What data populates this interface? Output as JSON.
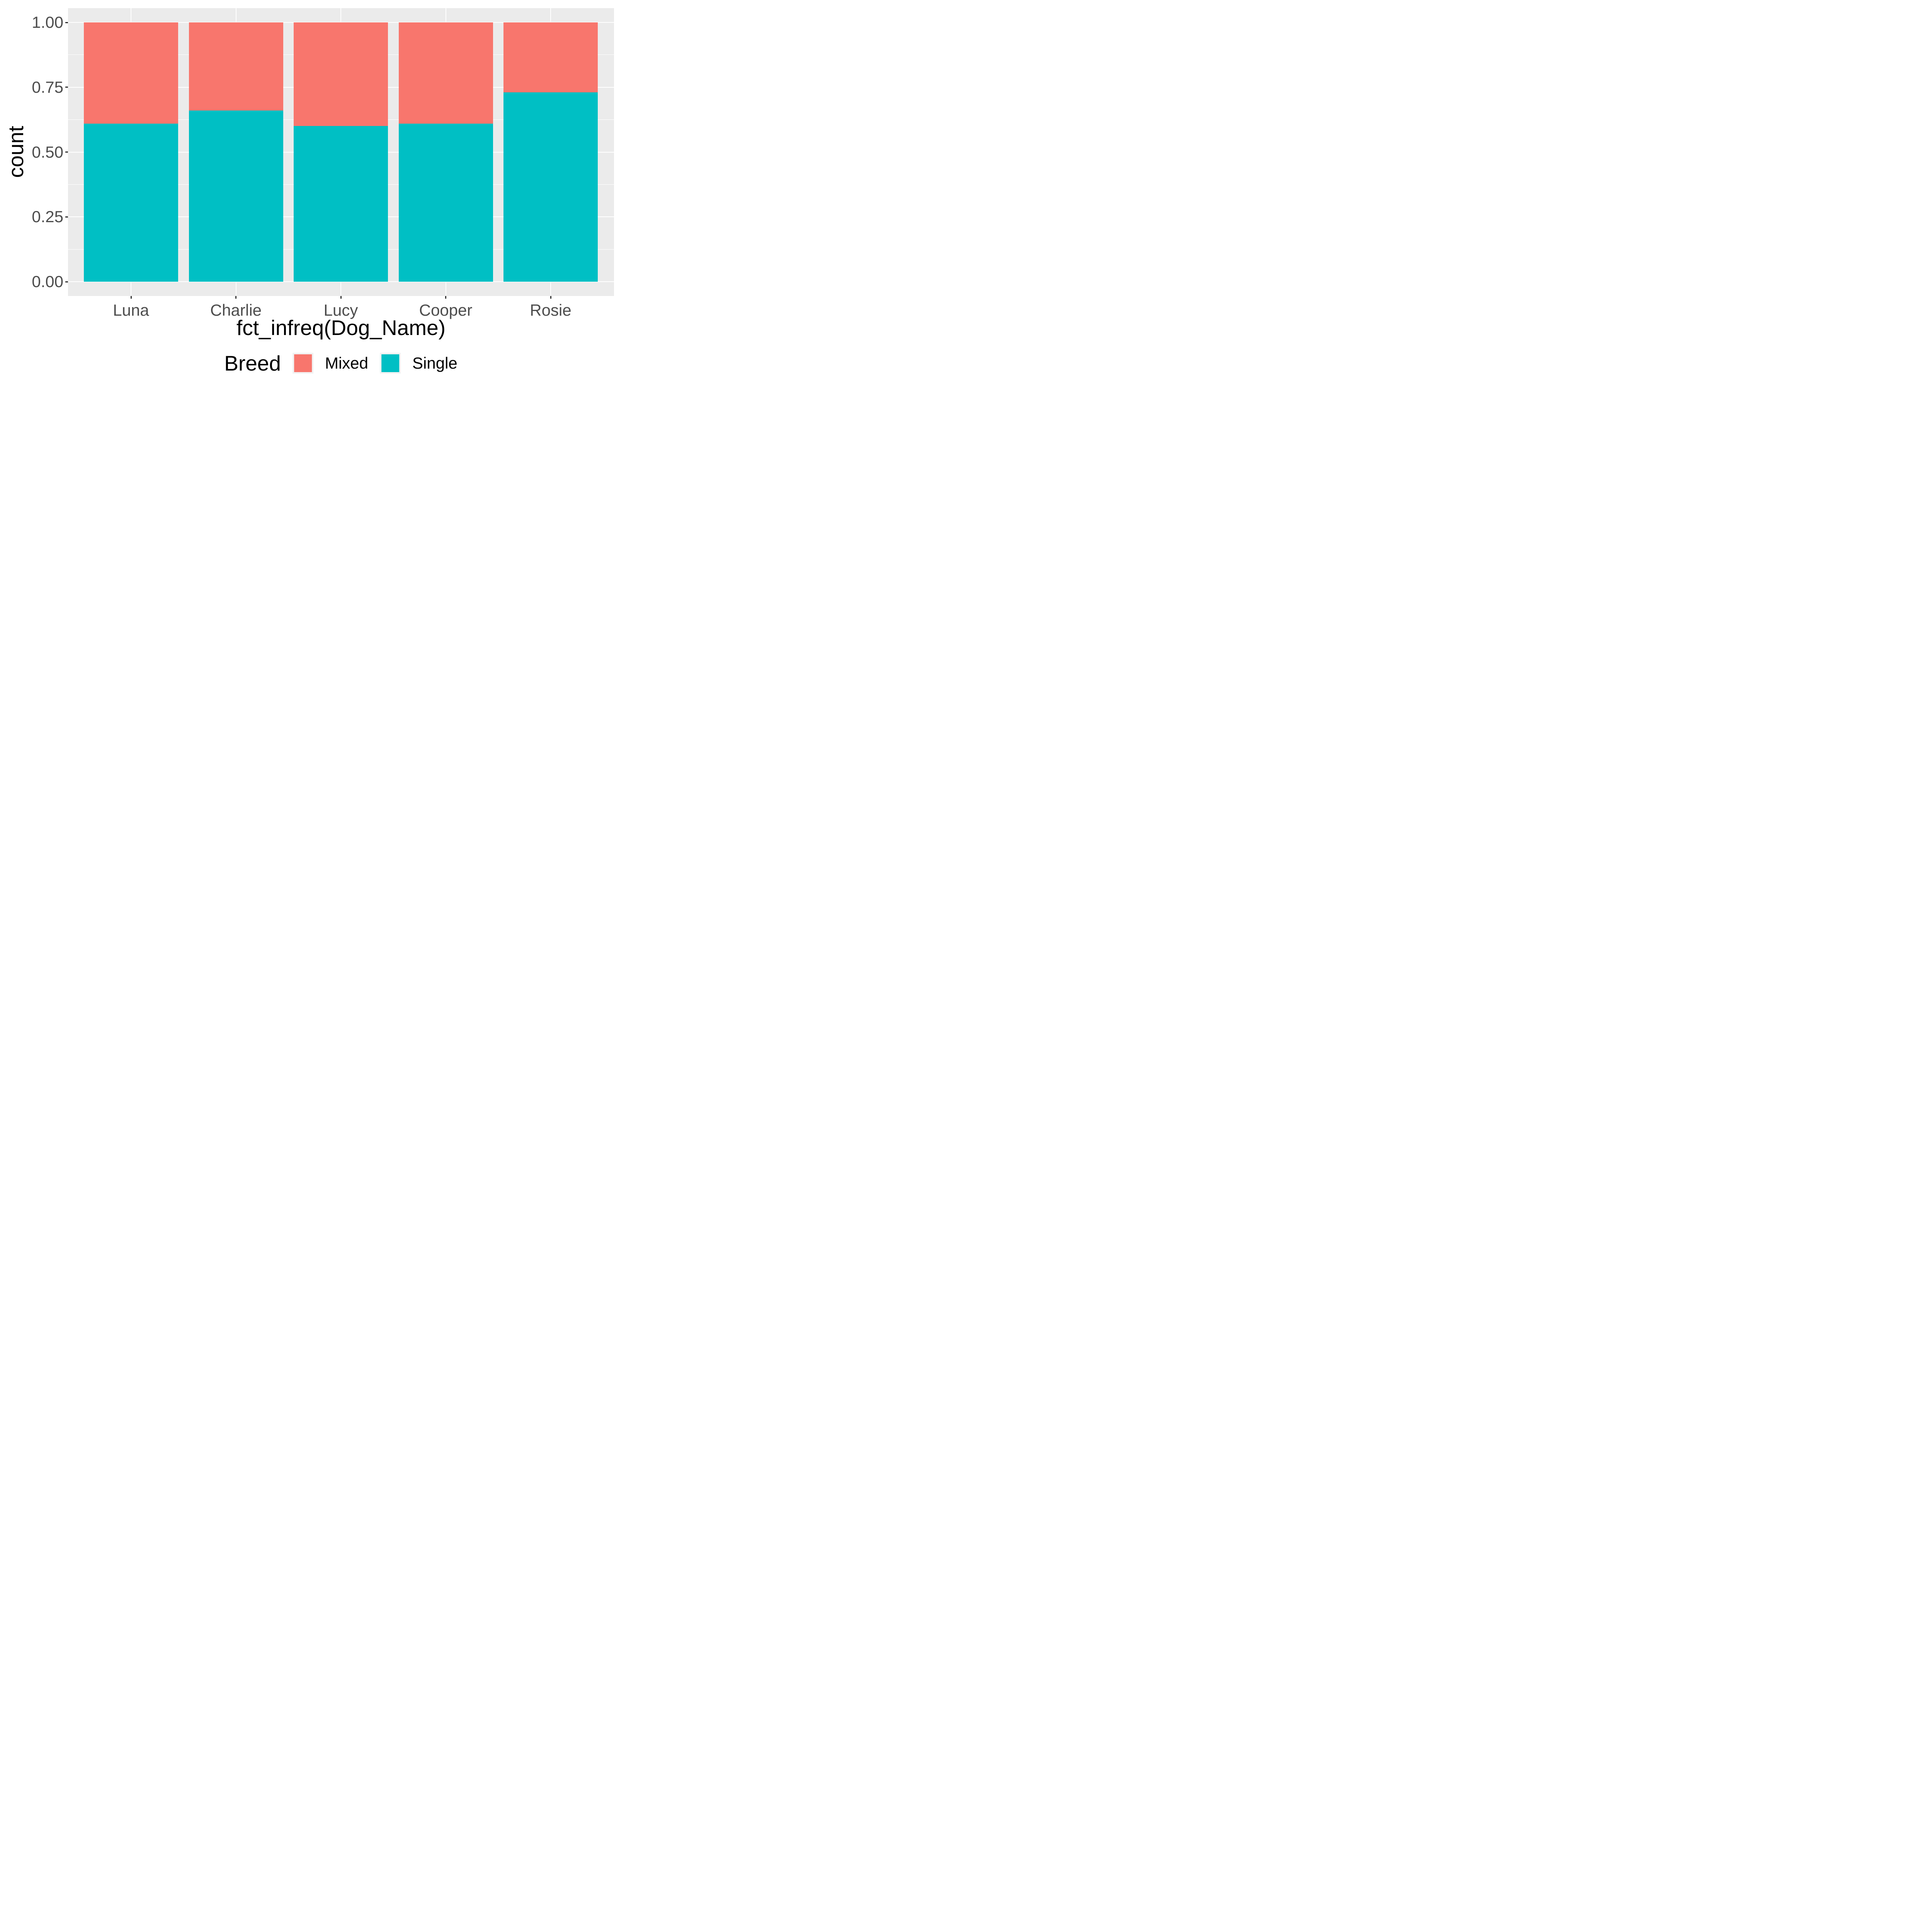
{
  "chart_data": {
    "type": "bar",
    "variant": "stacked-normalized",
    "title": "",
    "xlabel": "fct_infreq(Dog_Name)",
    "ylabel": "count",
    "categories": [
      "Luna",
      "Charlie",
      "Lucy",
      "Cooper",
      "Rosie"
    ],
    "series": [
      {
        "name": "Single",
        "color": "#00BFC4",
        "values": [
          0.61,
          0.66,
          0.6,
          0.61,
          0.73
        ]
      },
      {
        "name": "Mixed",
        "color": "#F8766D",
        "values": [
          0.39,
          0.34,
          0.4,
          0.39,
          0.27
        ]
      }
    ],
    "stack_order_bottom_to_top": [
      "Single",
      "Mixed"
    ],
    "ylim": [
      0,
      1
    ],
    "y_axis": {
      "ticks": [
        {
          "f": 0.0,
          "label": "0.00"
        },
        {
          "f": 0.25,
          "label": "0.25"
        },
        {
          "f": 0.5,
          "label": "0.50"
        },
        {
          "f": 0.75,
          "label": "0.75"
        },
        {
          "f": 1.0,
          "label": "1.00"
        }
      ],
      "minor_gridlines": [
        0.125,
        0.375,
        0.625,
        0.875
      ]
    },
    "grid": "on",
    "legend_position": "bottom",
    "legend_title": "Breed",
    "legend": {
      "items": [
        {
          "label": "Mixed",
          "color": "#F8766D"
        },
        {
          "label": "Single",
          "color": "#00BFC4"
        }
      ]
    },
    "colors": {
      "panel_background": "#EBEBEB",
      "gridline": "#FFFFFF",
      "tick_mark": "#333333",
      "tick_label": "#4D4D4D",
      "axis_title": "#000000",
      "legend_key_background": "#F2F2F2",
      "figure_background": "#FFFFFF"
    }
  }
}
